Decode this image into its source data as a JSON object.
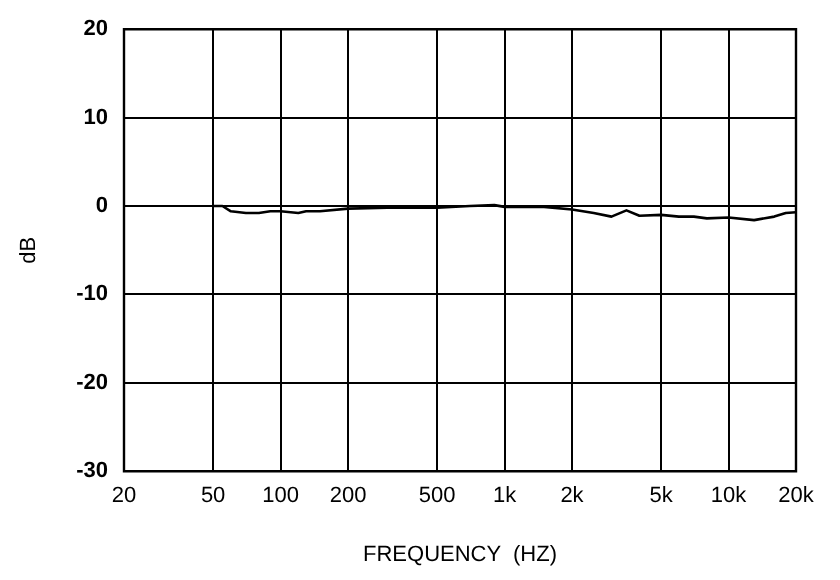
{
  "chart_data": {
    "type": "line",
    "xlabel": "FREQUENCY  (HZ)",
    "ylabel": "dB",
    "log": "x",
    "grid": true,
    "legend": false,
    "marker": "none",
    "line_style": "solid",
    "xlim": [
      20,
      20000
    ],
    "xticks": [
      20,
      50,
      100,
      200,
      500,
      {
        "value": 1000,
        "label": "1k"
      },
      {
        "value": 2000,
        "label": "2k"
      },
      {
        "value": 5000,
        "label": "5k"
      },
      {
        "value": 10000,
        "label": "10k"
      },
      {
        "value": 20000,
        "label": "20k"
      }
    ],
    "ylim": [
      -30,
      20
    ],
    "yticks": [
      -30,
      -20,
      -10,
      0,
      10,
      20
    ],
    "series": [
      {
        "color": "#000000",
        "x": [
          50,
          55,
          60,
          70,
          80,
          90,
          100,
          120,
          130,
          150,
          200,
          300,
          500,
          700,
          900,
          1000,
          1500,
          2000,
          2500,
          3000,
          3500,
          4000,
          5000,
          6000,
          7000,
          8000,
          10000,
          13000,
          16000,
          18000,
          20000
        ],
        "values": [
          0,
          0,
          -0.6,
          -0.8,
          -0.8,
          -0.6,
          -0.6,
          -0.8,
          -0.6,
          -0.6,
          -0.3,
          -0.2,
          -0.2,
          0,
          0.1,
          -0.1,
          -0.1,
          -0.4,
          -0.8,
          -1.2,
          -0.5,
          -1.1,
          -1,
          -1.2,
          -1.2,
          -1.4,
          -1.3,
          -1.6,
          -1.2,
          -0.8,
          -0.7
        ]
      }
    ]
  }
}
